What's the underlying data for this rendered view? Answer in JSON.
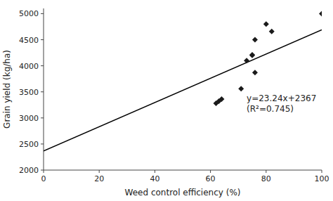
{
  "chart_data": {
    "type": "scatter",
    "xlabel": "Weed control efficiency (%)",
    "ylabel": "Grain yield (kg/ha)",
    "annotations": [
      "y=23.24x+2367",
      "(R²=0.745)"
    ],
    "series": [
      {
        "type": "scatter",
        "x": [
          62,
          63,
          64,
          71,
          73,
          75,
          75,
          76,
          76,
          80,
          82,
          100
        ],
        "values": [
          3280,
          3320,
          3360,
          3560,
          4100,
          4200,
          4210,
          3870,
          4500,
          4800,
          4660,
          5000
        ],
        "color": "#1a1a1a",
        "marker": "diamond"
      },
      {
        "type": "line",
        "x": [
          0,
          100
        ],
        "values": [
          2367,
          4691
        ],
        "color": "#000000"
      }
    ],
    "xlim": [
      0,
      100
    ],
    "xticks": [
      0,
      20,
      40,
      60,
      80,
      100
    ],
    "ylim": [
      2000,
      5100
    ],
    "yticks": [
      2000,
      2500,
      3000,
      3500,
      4000,
      4500,
      5000
    ],
    "grid": false
  }
}
